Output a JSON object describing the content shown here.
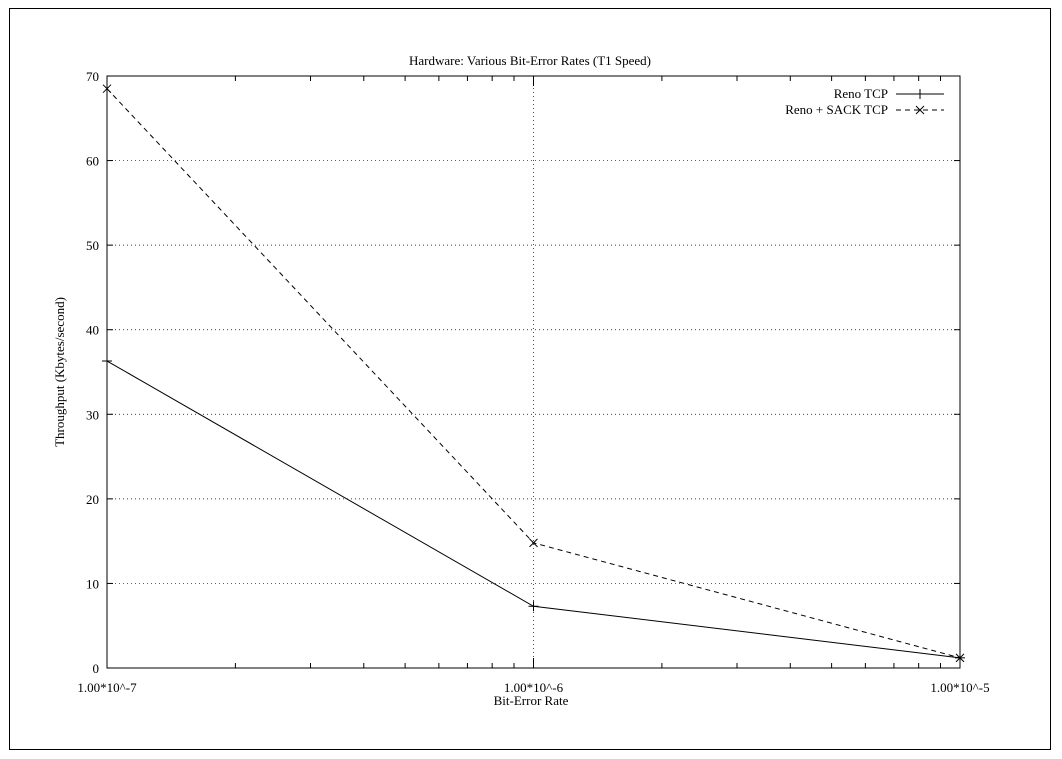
{
  "chart_data": {
    "type": "line",
    "title": "Hardware: Various Bit-Error Rates (T1 Speed)",
    "xlabel": "Bit-Error Rate",
    "ylabel": "Throughput (Kbytes/second)",
    "x_scale": "log",
    "x": [
      1e-07,
      1e-06,
      1e-05
    ],
    "x_tick_labels": [
      "1.00*10^-7",
      "1.00*10^-6",
      "1.00*10^-5"
    ],
    "xlim": [
      1e-07,
      1e-05
    ],
    "ylim": [
      0,
      70
    ],
    "y_ticks": [
      0,
      10,
      20,
      30,
      40,
      50,
      60,
      70
    ],
    "grid": "dotted",
    "legend_position": "top-right",
    "series": [
      {
        "name": "Reno TCP",
        "line": "solid",
        "marker": "plus",
        "values": [
          36.3,
          7.3,
          1.2
        ]
      },
      {
        "name": "Reno + SACK TCP",
        "line": "dashed",
        "marker": "cross",
        "values": [
          68.5,
          14.8,
          1.2
        ]
      }
    ]
  }
}
